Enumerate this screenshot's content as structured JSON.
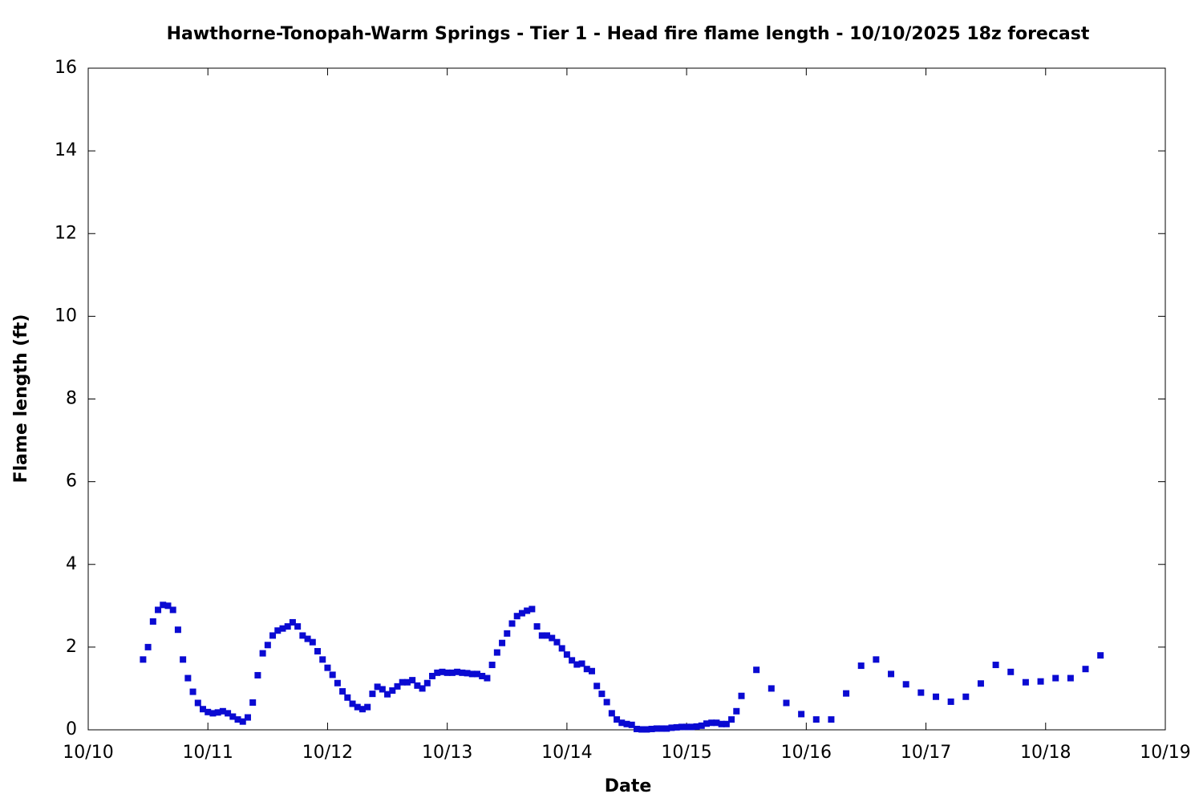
{
  "chart_data": {
    "type": "scatter",
    "title": "Hawthorne-Tonopah-Warm Springs - Tier 1 - Head fire flame length - 10/10/2025 18z forecast",
    "xlabel": "Date",
    "ylabel": "Flame length (ft)",
    "color": "#0a0ad2",
    "xlim": [
      0,
      216
    ],
    "xticks": [
      {
        "value": 0,
        "label": "10/10"
      },
      {
        "value": 24,
        "label": "10/11"
      },
      {
        "value": 48,
        "label": "10/12"
      },
      {
        "value": 72,
        "label": "10/13"
      },
      {
        "value": 96,
        "label": "10/14"
      },
      {
        "value": 120,
        "label": "10/15"
      },
      {
        "value": 144,
        "label": "10/16"
      },
      {
        "value": 168,
        "label": "10/17"
      },
      {
        "value": 192,
        "label": "10/18"
      },
      {
        "value": 216,
        "label": "10/19"
      }
    ],
    "ylim": [
      0,
      16
    ],
    "yticks": [
      0,
      2,
      4,
      6,
      8,
      10,
      12,
      14,
      16
    ],
    "x": [
      11,
      12,
      13,
      14,
      15,
      16,
      17,
      18,
      19,
      20,
      21,
      22,
      23,
      24,
      25,
      26,
      27,
      28,
      29,
      30,
      31,
      32,
      33,
      34,
      35,
      36,
      37,
      38,
      39,
      40,
      41,
      42,
      43,
      44,
      45,
      46,
      47,
      48,
      49,
      50,
      51,
      52,
      53,
      54,
      55,
      56,
      57,
      58,
      59,
      60,
      61,
      62,
      63,
      64,
      65,
      66,
      67,
      68,
      69,
      70,
      71,
      72,
      73,
      74,
      75,
      76,
      77,
      78,
      79,
      80,
      81,
      82,
      83,
      84,
      85,
      86,
      87,
      88,
      89,
      90,
      91,
      92,
      93,
      94,
      95,
      96,
      97,
      98,
      99,
      100,
      101,
      102,
      103,
      104,
      105,
      106,
      107,
      108,
      109,
      110,
      111,
      112,
      113,
      114,
      115,
      116,
      117,
      118,
      119,
      120,
      121,
      122,
      123,
      124,
      125,
      126,
      127,
      128,
      129,
      130,
      131,
      134,
      137,
      140,
      143,
      146,
      149,
      152,
      155,
      158,
      161,
      164,
      167,
      170,
      173,
      176,
      179,
      182,
      185,
      188,
      191,
      194,
      197,
      200,
      203
    ],
    "values": [
      1.7,
      2.0,
      2.62,
      2.9,
      3.02,
      3.0,
      2.9,
      2.42,
      1.7,
      1.25,
      0.92,
      0.65,
      0.5,
      0.43,
      0.4,
      0.42,
      0.45,
      0.4,
      0.32,
      0.25,
      0.2,
      0.3,
      0.66,
      1.32,
      1.85,
      2.05,
      2.28,
      2.4,
      2.45,
      2.5,
      2.6,
      2.5,
      2.28,
      2.2,
      2.12,
      1.9,
      1.7,
      1.5,
      1.33,
      1.13,
      0.93,
      0.78,
      0.63,
      0.55,
      0.5,
      0.55,
      0.87,
      1.04,
      0.98,
      0.86,
      0.95,
      1.05,
      1.15,
      1.15,
      1.2,
      1.07,
      1.0,
      1.13,
      1.3,
      1.38,
      1.4,
      1.38,
      1.38,
      1.4,
      1.38,
      1.37,
      1.35,
      1.35,
      1.3,
      1.25,
      1.57,
      1.87,
      2.1,
      2.33,
      2.57,
      2.75,
      2.82,
      2.88,
      2.92,
      2.5,
      2.28,
      2.28,
      2.22,
      2.12,
      1.97,
      1.82,
      1.68,
      1.58,
      1.6,
      1.47,
      1.42,
      1.06,
      0.87,
      0.67,
      0.4,
      0.25,
      0.17,
      0.14,
      0.12,
      0.02,
      0.01,
      0.01,
      0.02,
      0.03,
      0.03,
      0.03,
      0.05,
      0.06,
      0.07,
      0.07,
      0.07,
      0.08,
      0.1,
      0.15,
      0.17,
      0.17,
      0.14,
      0.14,
      0.25,
      0.45,
      0.82,
      1.45,
      1.0,
      0.65,
      0.38,
      0.25,
      0.25,
      0.88,
      1.55,
      1.7,
      1.35,
      1.1,
      0.9,
      0.8,
      0.68,
      0.8,
      1.12,
      1.57,
      1.4,
      1.15,
      1.17,
      1.25,
      1.25,
      1.47,
      1.8
    ]
  }
}
